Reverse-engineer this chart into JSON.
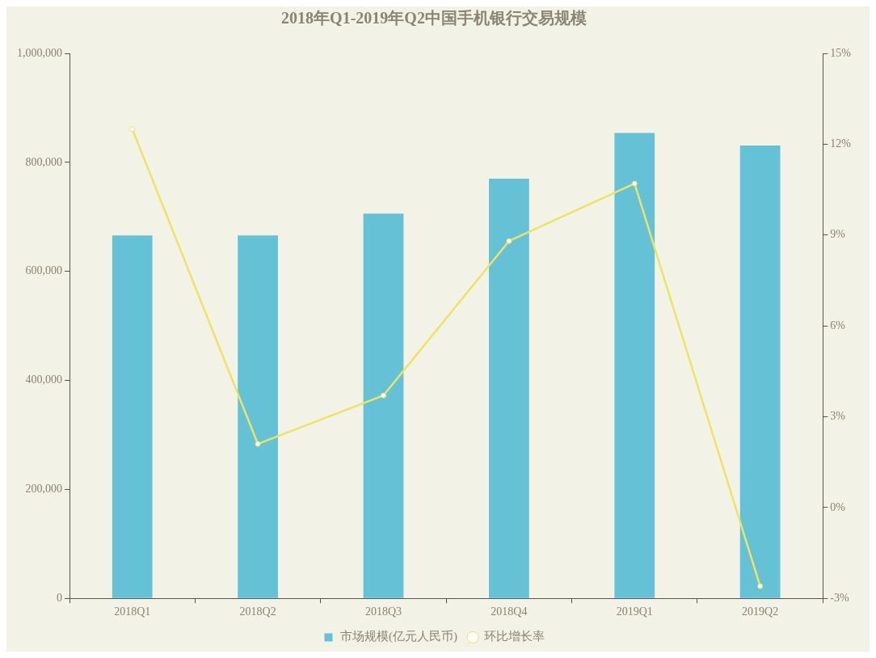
{
  "chart_data": {
    "type": "bar",
    "title": "2018年Q1-2019年Q2中国手机银行交易规模",
    "categories": [
      "2018Q1",
      "2018Q2",
      "2018Q3",
      "2018Q4",
      "2019Q1",
      "2019Q2"
    ],
    "series": [
      {
        "name": "市场规模(亿元人民币)",
        "color": "#64c1d6",
        "values": [
          666000,
          666000,
          706000,
          770000,
          854000,
          831000
        ]
      },
      {
        "name": "环比增长率",
        "type": "line",
        "axis": "y2",
        "color": "#ede365",
        "values": [
          12.5,
          2.1,
          3.7,
          8.8,
          10.7,
          -2.6
        ]
      }
    ],
    "ylim": [
      0,
      1000000
    ],
    "yticks": [
      0,
      {
        "value": 200000,
        "label": "200,000"
      },
      {
        "value": 400000,
        "label": "400,000"
      },
      {
        "value": 600000,
        "label": "600,000"
      },
      {
        "value": 800000,
        "label": "800,000"
      },
      {
        "value": 1000000,
        "label": "1,000,000"
      }
    ],
    "y2lim": [
      -3,
      15
    ],
    "y2ticks": [
      {
        "value": -3,
        "label": "-3%"
      },
      {
        "value": 0,
        "label": "0%"
      },
      {
        "value": 3,
        "label": "3%"
      },
      {
        "value": 6,
        "label": "6%"
      },
      {
        "value": 9,
        "label": "9%"
      },
      {
        "value": 12,
        "label": "12%"
      },
      {
        "value": 15,
        "label": "15%"
      }
    ],
    "grid": false,
    "legend": "bottom",
    "marker": "circle",
    "line_style": "solid"
  }
}
